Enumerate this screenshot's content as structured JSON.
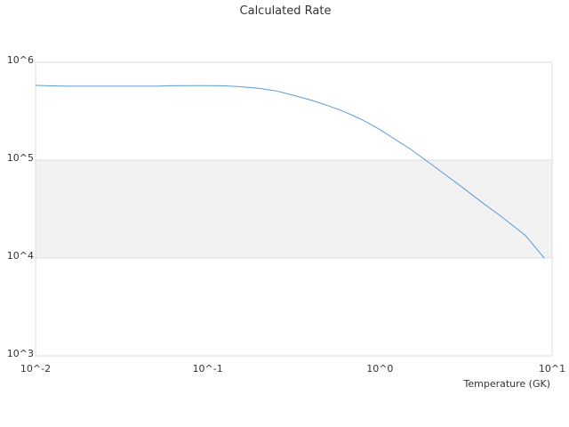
{
  "chart_data": {
    "type": "line",
    "title": "Calculated Rate",
    "xlabel": "Temperature (GK)",
    "ylabel": "",
    "xscale": "log",
    "yscale": "log",
    "xlim": [
      0.01,
      10
    ],
    "ylim": [
      1000,
      1000000
    ],
    "x_ticks": [
      {
        "value": 0.01,
        "label": "10^-2"
      },
      {
        "value": 0.1,
        "label": "10^-1"
      },
      {
        "value": 1,
        "label": "10^0"
      },
      {
        "value": 10,
        "label": "10^1"
      }
    ],
    "y_ticks": [
      {
        "value": 1000,
        "label": "10^3"
      },
      {
        "value": 10000,
        "label": "10^4"
      },
      {
        "value": 100000,
        "label": "10^5"
      },
      {
        "value": 1000000,
        "label": "10^6"
      }
    ],
    "grid": "horizontal",
    "band_fill": "alternating",
    "legend": "none",
    "line_color": "#5b9bd5",
    "series": [
      {
        "x": [
          0.01,
          0.015,
          0.02,
          0.03,
          0.05,
          0.06,
          0.08,
          0.1,
          0.12,
          0.15,
          0.2,
          0.25,
          0.3,
          0.4,
          0.5,
          0.6,
          0.7,
          0.8,
          1.0,
          1.5,
          2.0,
          3.0,
          4.0,
          5.0,
          7.0,
          9.0
        ],
        "y": [
          580000,
          570000,
          570000,
          570000,
          570000,
          575000,
          578000,
          578000,
          575000,
          565000,
          540000,
          510000,
          470000,
          410000,
          360000,
          320000,
          285000,
          255000,
          205000,
          130000,
          90000,
          53000,
          36000,
          27000,
          17000,
          10000
        ]
      }
    ]
  }
}
